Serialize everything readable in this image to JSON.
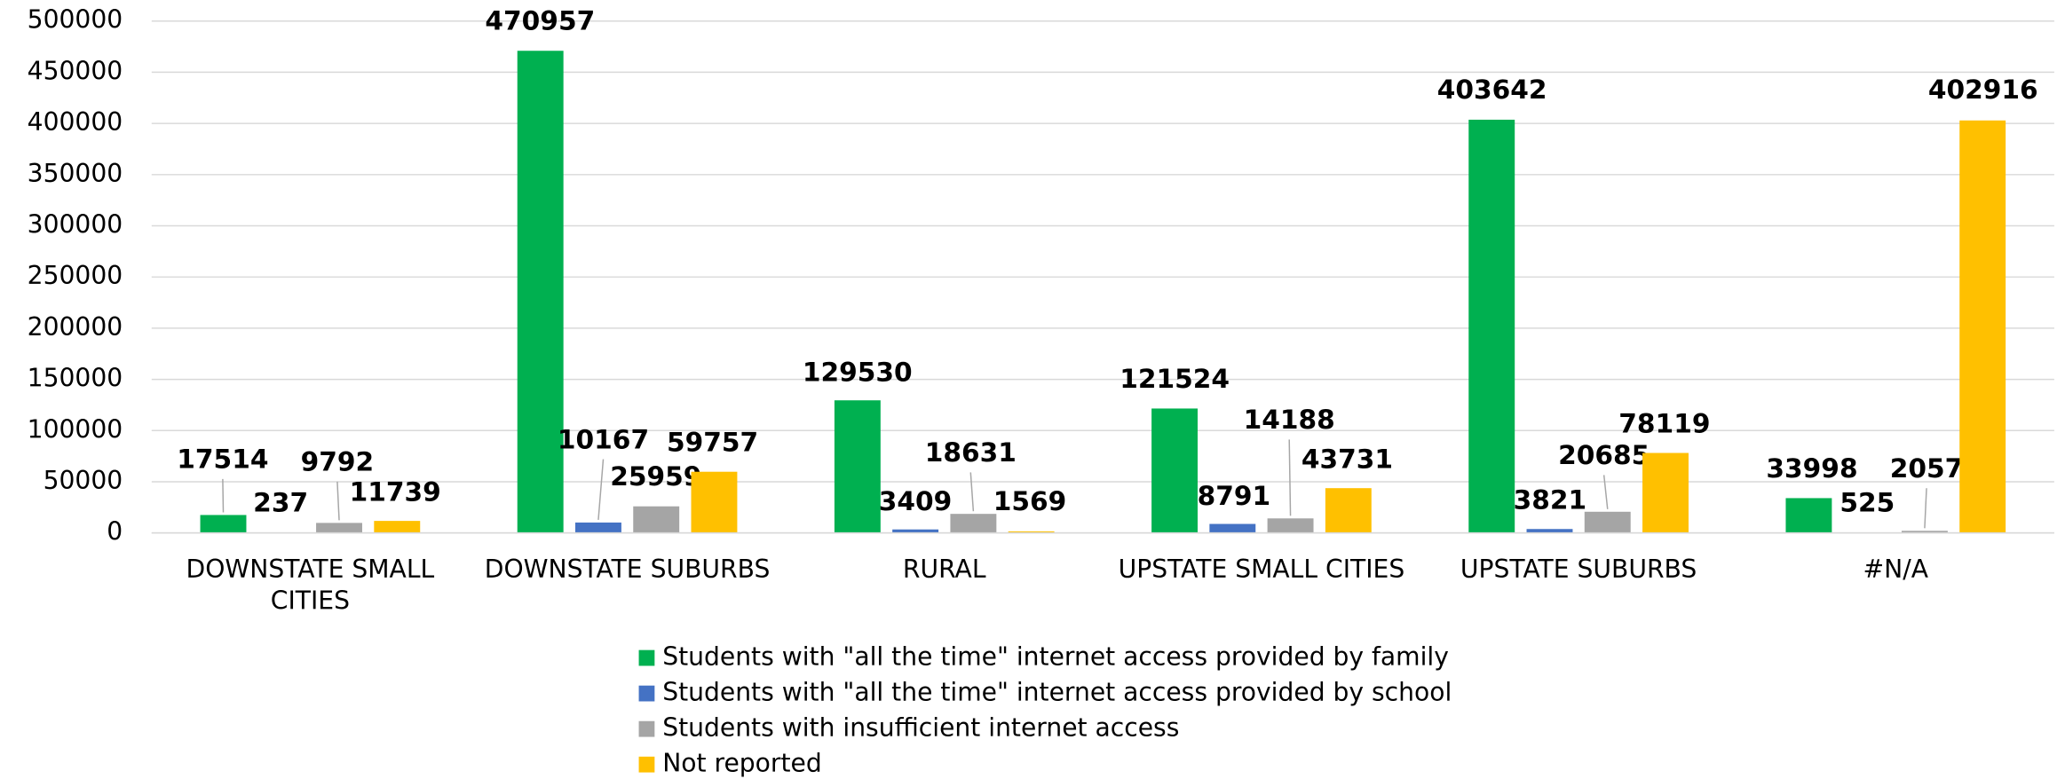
{
  "chart_data": {
    "type": "bar",
    "categories": [
      "DOWNSTATE SMALL CITIES",
      "DOWNSTATE SUBURBS",
      "RURAL",
      "UPSTATE SMALL CITIES",
      "UPSTATE SUBURBS",
      "#N/A"
    ],
    "series": [
      {
        "name": "Students with \"all the time\" internet access provided by family",
        "color": "#00b050",
        "values": [
          17514,
          470957,
          129530,
          121524,
          403642,
          33998
        ]
      },
      {
        "name": "Students with \"all the time\" internet access provided by school",
        "color": "#4472c4",
        "values": [
          237,
          10167,
          3409,
          8791,
          3821,
          525
        ]
      },
      {
        "name": "Students with insufficient internet access",
        "color": "#a5a5a5",
        "values": [
          9792,
          25959,
          18631,
          14188,
          20685,
          2057
        ]
      },
      {
        "name": "Not reported",
        "color": "#ffc000",
        "values": [
          11739,
          59757,
          1569,
          43731,
          78119,
          402916
        ]
      }
    ],
    "ylim": [
      0,
      500000
    ],
    "yticks": [
      0,
      50000,
      100000,
      150000,
      200000,
      250000,
      300000,
      350000,
      400000,
      450000,
      500000
    ],
    "grid": true,
    "legend": "bottom"
  }
}
